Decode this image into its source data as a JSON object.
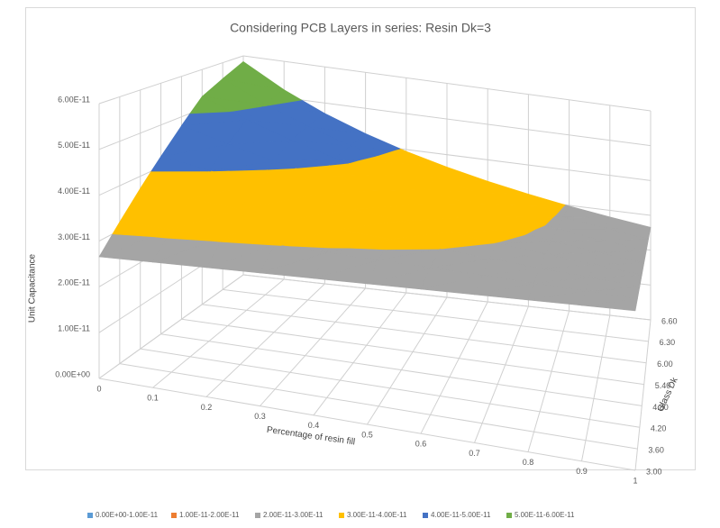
{
  "chart_data": {
    "type": "surface",
    "title": "Considering PCB Layers in series: Resin Dk=3",
    "x_label": "Percentage of resin fill",
    "depth_label": "Glass Dk",
    "z_label": "Unit Capacitance",
    "x": [
      0,
      0.1,
      0.2,
      0.3,
      0.4,
      0.5,
      0.6,
      0.7,
      0.8,
      0.9,
      1
    ],
    "depth_categories": [
      "3.00",
      "3.60",
      "4.20",
      "4.80",
      "5.40",
      "6.00",
      "6.30",
      "6.60"
    ],
    "zlim": [
      0,
      6e-11
    ],
    "zticks": [
      {
        "value": 0,
        "label": "0.00E+00"
      },
      {
        "value": 1e-11,
        "label": "1.00E-11"
      },
      {
        "value": 2e-11,
        "label": "2.00E-11"
      },
      {
        "value": 3e-11,
        "label": "3.00E-11"
      },
      {
        "value": 4e-11,
        "label": "4.00E-11"
      },
      {
        "value": 5e-11,
        "label": "5.00E-11"
      },
      {
        "value": 6e-11,
        "label": "6.00E-11"
      }
    ],
    "z": [
      [
        2.656e-11,
        2.656e-11,
        2.656e-11,
        2.656e-11,
        2.656e-11,
        2.656e-11,
        2.656e-11,
        2.656e-11,
        2.656e-11,
        2.656e-11,
        2.656e-11
      ],
      [
        3.187e-11,
        3.125e-11,
        3.065e-11,
        3.007e-11,
        2.951e-11,
        2.898e-11,
        2.846e-11,
        2.796e-11,
        2.748e-11,
        2.701e-11,
        2.656e-11
      ],
      [
        3.719e-11,
        3.576e-11,
        3.443e-11,
        3.32e-11,
        3.206e-11,
        3.099e-11,
        2.999e-11,
        2.905e-11,
        2.817e-11,
        2.734e-11,
        2.656e-11
      ],
      [
        4.25e-11,
        4.009e-11,
        3.795e-11,
        3.602e-11,
        3.427e-11,
        3.269e-11,
        3.125e-11,
        2.993e-11,
        2.872e-11,
        2.76e-11,
        2.656e-11
      ],
      [
        4.781e-11,
        4.427e-11,
        4.122e-11,
        3.856e-11,
        3.622e-11,
        3.415e-11,
        3.23e-11,
        3.065e-11,
        2.915e-11,
        2.78e-11,
        2.656e-11
      ],
      [
        5.312e-11,
        4.829e-11,
        4.427e-11,
        4.086e-11,
        3.795e-11,
        3.542e-11,
        3.32e-11,
        3.125e-11,
        2.951e-11,
        2.796e-11,
        2.656e-11
      ],
      [
        5.578e-11,
        5.025e-11,
        4.572e-11,
        4.194e-11,
        3.874e-11,
        3.599e-11,
        3.36e-11,
        3.151e-11,
        2.967e-11,
        2.803e-11,
        2.656e-11
      ],
      [
        5.844e-11,
        5.218e-11,
        4.713e-11,
        4.297e-11,
        3.948e-11,
        3.652e-11,
        3.397e-11,
        3.176e-11,
        2.981e-11,
        2.81e-11,
        2.656e-11
      ]
    ],
    "bands": [
      {
        "name": "0.00E+00-1.00E-11",
        "color": "#5b9bd5",
        "min": 0,
        "max": 1e-11
      },
      {
        "name": "1.00E-11-2.00E-11",
        "color": "#ed7d31",
        "min": 1e-11,
        "max": 2e-11
      },
      {
        "name": "2.00E-11-3.00E-11",
        "color": "#a5a5a5",
        "min": 2e-11,
        "max": 3e-11
      },
      {
        "name": "3.00E-11-4.00E-11",
        "color": "#ffc000",
        "min": 3e-11,
        "max": 4e-11
      },
      {
        "name": "4.00E-11-5.00E-11",
        "color": "#4472c4",
        "min": 4e-11,
        "max": 5e-11
      },
      {
        "name": "5.00E-11-6.00E-11",
        "color": "#70ad47",
        "min": 5e-11,
        "max": 6e-11
      }
    ],
    "legend": "bottom",
    "grid": true
  }
}
